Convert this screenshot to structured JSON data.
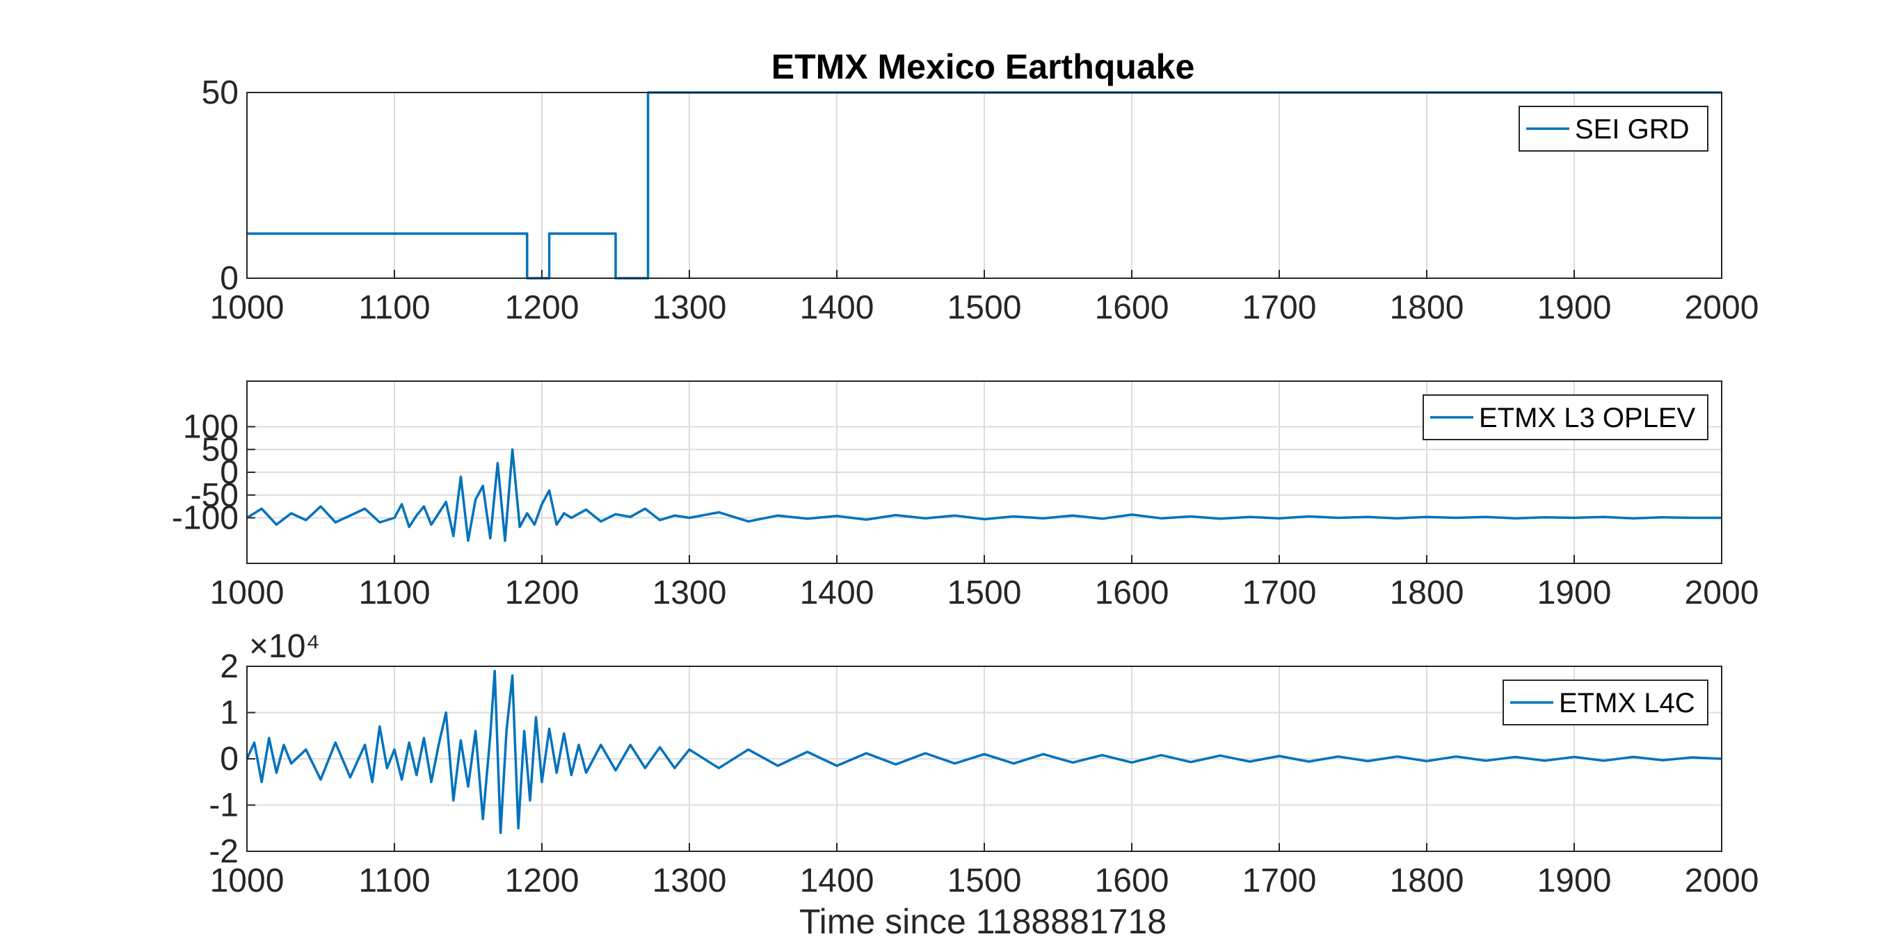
{
  "chart_data": [
    {
      "type": "line",
      "title": "ETMX Mexico Earthquake",
      "xlabel": "",
      "ylabel": "",
      "xlim": [
        1000,
        2000
      ],
      "ylim": [
        0,
        50
      ],
      "xticks": [
        1000,
        1100,
        1200,
        1300,
        1400,
        1500,
        1600,
        1700,
        1800,
        1900,
        2000
      ],
      "yticks": [
        0,
        50
      ],
      "grid": true,
      "legend_position": "top-right",
      "series": [
        {
          "name": "SEI GRD",
          "color": "#0072BD",
          "x": [
            1000,
            1190,
            1190,
            1205,
            1205,
            1250,
            1250,
            1272,
            1272,
            2000
          ],
          "y": [
            12,
            12,
            0,
            0,
            12,
            12,
            0,
            0,
            50,
            50
          ]
        }
      ]
    },
    {
      "type": "line",
      "title": "",
      "xlabel": "",
      "ylabel": "",
      "xlim": [
        1000,
        2000
      ],
      "ylim": [
        -200,
        200
      ],
      "xticks": [
        1000,
        1100,
        1200,
        1300,
        1400,
        1500,
        1600,
        1700,
        1800,
        1900,
        2000
      ],
      "yticks": [
        -100,
        -50,
        0,
        50,
        100
      ],
      "grid": true,
      "legend_position": "top-right",
      "series": [
        {
          "name": "ETMX L3 OPLEV",
          "color": "#0072BD",
          "x": [
            1000,
            1010,
            1020,
            1030,
            1040,
            1050,
            1060,
            1070,
            1080,
            1090,
            1100,
            1105,
            1110,
            1115,
            1120,
            1125,
            1130,
            1135,
            1140,
            1145,
            1150,
            1155,
            1160,
            1165,
            1170,
            1175,
            1180,
            1185,
            1190,
            1195,
            1200,
            1205,
            1210,
            1215,
            1220,
            1230,
            1240,
            1250,
            1260,
            1270,
            1280,
            1290,
            1300,
            1320,
            1340,
            1360,
            1380,
            1400,
            1420,
            1440,
            1460,
            1480,
            1500,
            1520,
            1540,
            1560,
            1580,
            1600,
            1620,
            1640,
            1660,
            1680,
            1700,
            1720,
            1740,
            1760,
            1780,
            1800,
            1820,
            1840,
            1860,
            1880,
            1900,
            1920,
            1940,
            1960,
            1980,
            2000
          ],
          "y": [
            -100,
            -80,
            -115,
            -90,
            -105,
            -75,
            -110,
            -95,
            -80,
            -110,
            -100,
            -70,
            -120,
            -95,
            -75,
            -115,
            -90,
            -65,
            -140,
            -10,
            -150,
            -60,
            -30,
            -145,
            20,
            -150,
            50,
            -120,
            -90,
            -115,
            -70,
            -40,
            -115,
            -90,
            -100,
            -82,
            -108,
            -92,
            -98,
            -80,
            -105,
            -95,
            -100,
            -88,
            -108,
            -95,
            -102,
            -96,
            -104,
            -94,
            -101,
            -95,
            -103,
            -97,
            -101,
            -95,
            -102,
            -93,
            -101,
            -97,
            -102,
            -98,
            -101,
            -97,
            -100,
            -98,
            -101,
            -98,
            -100,
            -98,
            -101,
            -99,
            -100,
            -98,
            -101,
            -99,
            -100,
            -100
          ]
        }
      ]
    },
    {
      "type": "line",
      "title": "",
      "xlabel": "Time since 1188881718",
      "ylabel": "",
      "y_exponent_label": "×10⁴",
      "xlim": [
        1000,
        2000
      ],
      "ylim": [
        -2,
        2
      ],
      "xticks": [
        1000,
        1100,
        1200,
        1300,
        1400,
        1500,
        1600,
        1700,
        1800,
        1900,
        2000
      ],
      "yticks": [
        -2,
        -1,
        0,
        1,
        2
      ],
      "grid": true,
      "legend_position": "top-right",
      "series": [
        {
          "name": "ETMX L4C",
          "color": "#0072BD",
          "x": [
            1000,
            1005,
            1010,
            1015,
            1020,
            1025,
            1030,
            1040,
            1050,
            1060,
            1070,
            1080,
            1085,
            1090,
            1095,
            1100,
            1105,
            1110,
            1115,
            1120,
            1125,
            1130,
            1135,
            1140,
            1145,
            1150,
            1155,
            1160,
            1165,
            1168,
            1172,
            1176,
            1180,
            1184,
            1188,
            1192,
            1196,
            1200,
            1205,
            1210,
            1215,
            1220,
            1225,
            1230,
            1240,
            1250,
            1260,
            1270,
            1280,
            1290,
            1300,
            1320,
            1340,
            1360,
            1380,
            1400,
            1420,
            1440,
            1460,
            1480,
            1500,
            1520,
            1540,
            1560,
            1580,
            1600,
            1620,
            1640,
            1660,
            1680,
            1700,
            1720,
            1740,
            1760,
            1780,
            1800,
            1820,
            1840,
            1860,
            1880,
            1900,
            1920,
            1940,
            1960,
            1980,
            2000
          ],
          "y": [
            0,
            0.35,
            -0.5,
            0.45,
            -0.3,
            0.3,
            -0.1,
            0.2,
            -0.45,
            0.35,
            -0.4,
            0.3,
            -0.5,
            0.7,
            -0.2,
            0.2,
            -0.45,
            0.35,
            -0.35,
            0.45,
            -0.5,
            0.3,
            1.0,
            -0.9,
            0.4,
            -0.6,
            0.6,
            -1.3,
            0.5,
            1.9,
            -1.6,
            0.6,
            1.8,
            -1.5,
            0.6,
            -0.9,
            0.9,
            -0.5,
            0.65,
            -0.3,
            0.55,
            -0.35,
            0.3,
            -0.3,
            0.3,
            -0.25,
            0.3,
            -0.2,
            0.25,
            -0.2,
            0.2,
            -0.2,
            0.2,
            -0.15,
            0.15,
            -0.15,
            0.12,
            -0.12,
            0.12,
            -0.1,
            0.1,
            -0.1,
            0.1,
            -0.08,
            0.08,
            -0.08,
            0.08,
            -0.07,
            0.07,
            -0.06,
            0.06,
            -0.06,
            0.05,
            -0.05,
            0.05,
            -0.05,
            0.05,
            -0.04,
            0.04,
            -0.04,
            0.04,
            -0.04,
            0.04,
            -0.03,
            0.03,
            0
          ]
        }
      ]
    }
  ]
}
